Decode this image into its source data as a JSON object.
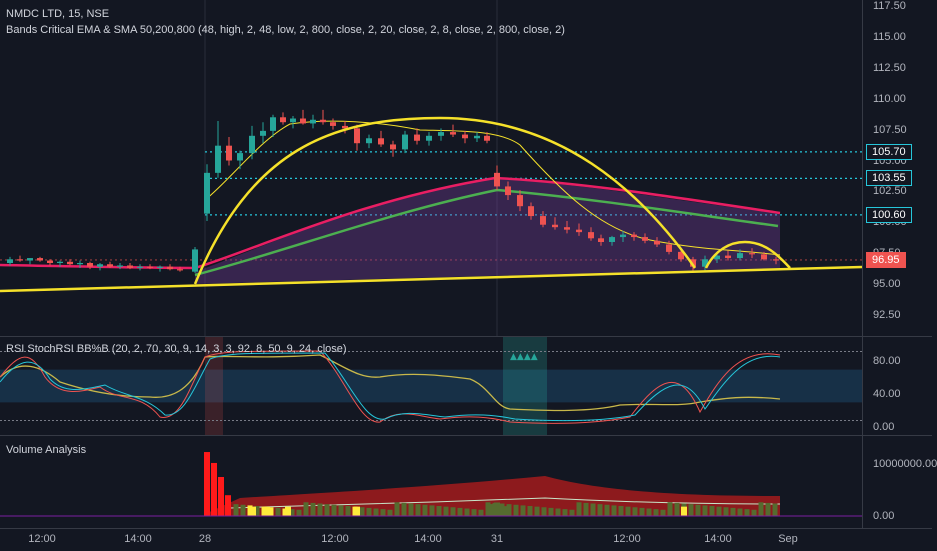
{
  "header": {
    "symbol_line": "NMDC LTD, 15, NSE",
    "indicator_line": "Bands Critical EMA & SMA 50,200,800 (48, high, 2, 48, low, 2, 800, close, 2, 20, close, 2, 8, close, 2, 800, close, 2)"
  },
  "price_axis": {
    "ticks": [
      "117.50",
      "115.00",
      "112.50",
      "110.00",
      "107.50",
      "105.00",
      "102.50",
      "100.00",
      "97.50",
      "95.00",
      "92.50"
    ],
    "tick_values": [
      117.5,
      115,
      112.5,
      110,
      107.5,
      105,
      102.5,
      100,
      97.5,
      95,
      92.5
    ]
  },
  "price_tags": [
    {
      "label": "105.70",
      "value": 105.7,
      "color": "#26c6da"
    },
    {
      "label": "103.55",
      "value": 103.55,
      "color": "#26c6da"
    },
    {
      "label": "100.60",
      "value": 100.6,
      "color": "#26c6da"
    },
    {
      "label": "96.95",
      "value": 96.95,
      "color": "#ef5350"
    }
  ],
  "rsi_pane": {
    "legend": "RSI StochRSI BB%B (20, 2, 70, 30, 9, 14, 3, 3, 92, 8, 50, 9, 24, close)",
    "ticks": [
      "80.00",
      "40.00",
      "0.00"
    ],
    "tick_values": [
      80,
      40,
      0
    ]
  },
  "volume_pane": {
    "legend": "Volume Analysis",
    "ticks": [
      "10000000.00",
      "0.00"
    ],
    "tick_values": [
      10000000,
      0
    ]
  },
  "time_axis": {
    "labels": [
      "12:00",
      "14:00",
      "28",
      "12:00",
      "14:00",
      "31",
      "12:00",
      "14:00",
      "Sep"
    ]
  },
  "colors": {
    "background": "#131722",
    "up_candle": "#26a69a",
    "down_candle": "#ef5350",
    "pattern_line": "#f5e12a",
    "ema_red": "#e91e63",
    "sma_green": "#4caf50",
    "support_line": "#26c6da"
  }
}
